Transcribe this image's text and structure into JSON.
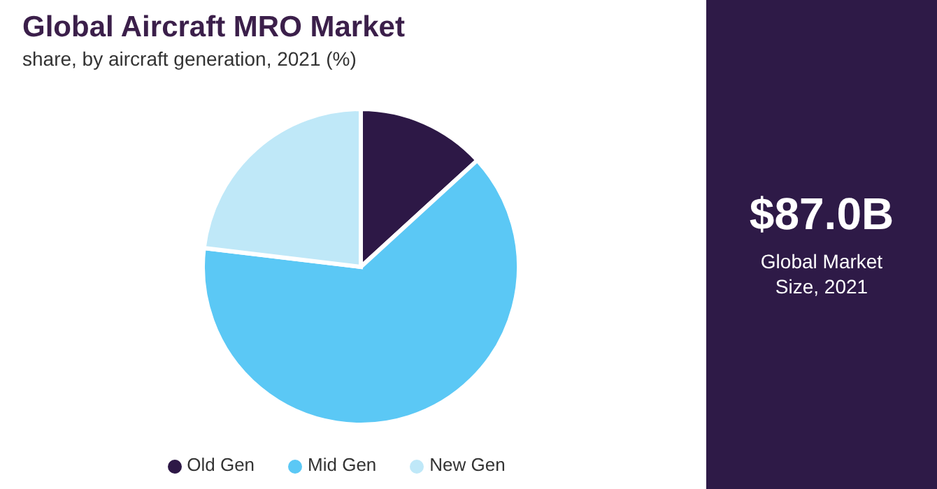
{
  "chart_data": [
    {
      "type": "pie",
      "title": "Global Aircraft MRO Market",
      "subtitle": "share, by aircraft generation, 2021 (%)",
      "categories": [
        "Old Gen",
        "Mid Gen",
        "New Gen"
      ],
      "values": [
        13.2,
        63.7,
        23.1
      ],
      "colors": [
        "#2d1846",
        "#5bc8f5",
        "#bfe8f8"
      ],
      "legend": "bottom"
    },
    {
      "type": "other",
      "title": "$87.0B",
      "subtitle": "Global Market Size, 2021"
    }
  ]
}
